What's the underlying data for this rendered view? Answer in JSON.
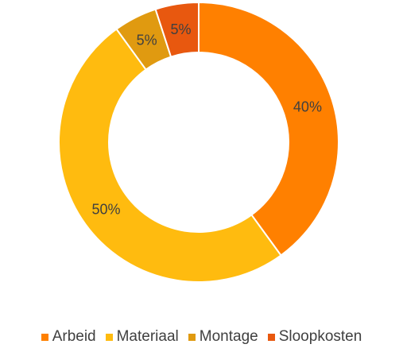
{
  "chart_data": {
    "type": "pie",
    "donut": true,
    "title": "",
    "legend_position": "bottom",
    "slices": [
      {
        "name": "Arbeid",
        "value": 40,
        "label": "40%",
        "color": "#FF8000"
      },
      {
        "name": "Materiaal",
        "value": 50,
        "label": "50%",
        "color": "#FFBB0F"
      },
      {
        "name": "Montage",
        "value": 5,
        "label": "5%",
        "color": "#E09A10"
      },
      {
        "name": "Sloopkosten",
        "value": 5,
        "label": "5%",
        "color": "#E8580F"
      }
    ]
  }
}
